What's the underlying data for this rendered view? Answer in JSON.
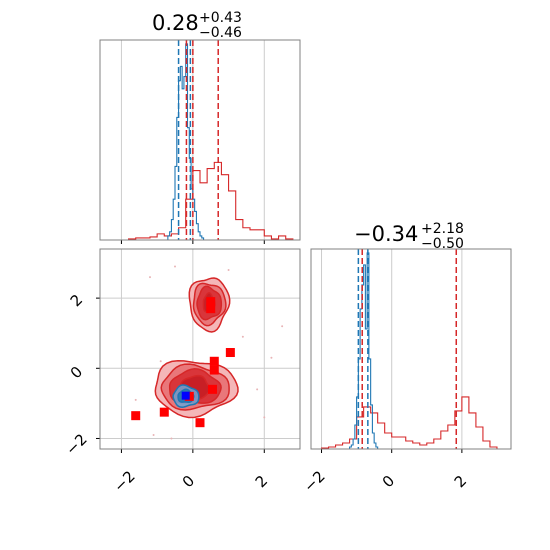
{
  "colors": {
    "red": "#d62728",
    "blue": "#1f77b4",
    "red_fill_light": "#f4b6b8",
    "red_fill_mid": "#e9777a",
    "red_fill_dark": "#d9353a",
    "marker_red": "#ff0000",
    "marker_blue": "#0000ff",
    "grid": "#cccccc",
    "axis": "#808080"
  },
  "chart_data": [
    {
      "type": "histogram",
      "panel": "marginal-param-1",
      "title": {
        "value": "0.28",
        "upper": "+0.43",
        "lower": "−0.46"
      },
      "xlim": [
        -2.6,
        3.0
      ],
      "ylim": [
        0,
        1
      ],
      "grid": true,
      "series": [
        {
          "color": "red",
          "bin_edges": [
            -2.6,
            -2.4,
            -2.2,
            -2.0,
            -1.8,
            -1.6,
            -1.4,
            -1.2,
            -1.0,
            -0.8,
            -0.6,
            -0.4,
            -0.2,
            0.0,
            0.2,
            0.4,
            0.6,
            0.8,
            1.0,
            1.2,
            1.4,
            1.6,
            1.8,
            2.0,
            2.2,
            2.4,
            2.6,
            2.8,
            3.0
          ],
          "counts": [
            0,
            0,
            0,
            0,
            0.005,
            0.01,
            0.01,
            0.015,
            0.03,
            0.02,
            0.03,
            0.06,
            0.2,
            0.34,
            0.28,
            0.35,
            0.38,
            0.32,
            0.24,
            0.1,
            0.06,
            0.05,
            0.05,
            0.02,
            0.005,
            0.02,
            0.005,
            0
          ]
        },
        {
          "color": "blue",
          "bin_edges": [
            -0.7,
            -0.65,
            -0.6,
            -0.55,
            -0.5,
            -0.45,
            -0.4,
            -0.35,
            -0.3,
            -0.25,
            -0.2,
            -0.15,
            -0.1,
            -0.05,
            0.0,
            0.05,
            0.1,
            0.15,
            0.2,
            0.25,
            0.3
          ],
          "counts": [
            0.02,
            0.04,
            0.1,
            0.2,
            0.36,
            0.6,
            0.78,
            0.85,
            0.74,
            0.8,
            0.96,
            0.55,
            0.4,
            0.25,
            0.2,
            0.14,
            0.08,
            0.04,
            0.02,
            0.01
          ]
        }
      ],
      "quantile_lines": [
        {
          "color": "blue",
          "x": -0.4
        },
        {
          "color": "blue",
          "x": -0.07
        },
        {
          "color": "red",
          "x": -0.18
        },
        {
          "color": "red",
          "x": 0.0
        },
        {
          "color": "red",
          "x": 0.71
        }
      ]
    },
    {
      "type": "histogram",
      "panel": "marginal-param-2",
      "title": {
        "value": "−0.34",
        "upper": "+2.18",
        "lower": "−0.50"
      },
      "xlim": [
        -2.3,
        3.4
      ],
      "ylim": [
        0,
        1
      ],
      "grid": true,
      "series": [
        {
          "color": "red",
          "bin_edges": [
            -2.2,
            -2.0,
            -1.8,
            -1.6,
            -1.4,
            -1.2,
            -1.0,
            -0.8,
            -0.6,
            -0.4,
            -0.2,
            0.0,
            0.2,
            0.4,
            0.6,
            0.8,
            1.0,
            1.2,
            1.4,
            1.6,
            1.8,
            2.0,
            2.2,
            2.4,
            2.6,
            2.8,
            3.0
          ],
          "counts": [
            0,
            0.005,
            0.01,
            0.02,
            0.03,
            0.05,
            0.16,
            0.21,
            0.18,
            0.13,
            0.08,
            0.06,
            0.06,
            0.04,
            0.03,
            0.02,
            0.03,
            0.05,
            0.09,
            0.12,
            0.19,
            0.26,
            0.18,
            0.11,
            0.04,
            0.01
          ]
        },
        {
          "color": "blue",
          "bin_edges": [
            -1.2,
            -1.15,
            -1.1,
            -1.05,
            -1.0,
            -0.95,
            -0.9,
            -0.85,
            -0.8,
            -0.75,
            -0.7,
            -0.65,
            -0.6,
            -0.55,
            -0.5,
            -0.45,
            -0.4
          ],
          "counts": [
            0.01,
            0.02,
            0.05,
            0.12,
            0.26,
            0.45,
            0.7,
            0.82,
            0.92,
            0.6,
            0.98,
            0.45,
            0.22,
            0.08,
            0.03,
            0.01
          ]
        }
      ],
      "quantile_lines": [
        {
          "color": "blue",
          "x": -0.95
        },
        {
          "color": "blue",
          "x": -0.68
        },
        {
          "color": "red",
          "x": -0.84
        },
        {
          "color": "red",
          "x": 1.84
        }
      ]
    },
    {
      "type": "contour",
      "panel": "joint-param-1-vs-param-2",
      "xlim": [
        -2.6,
        3.0
      ],
      "ylim": [
        -2.3,
        3.4
      ],
      "grid": true,
      "xticks": [
        "−2",
        "0",
        "2"
      ],
      "yticks": [
        "−2",
        "0",
        "2"
      ],
      "red_modes": [
        {
          "cx": 0.45,
          "cy": 1.85,
          "levels": [
            [
              0.55,
              0.75
            ],
            [
              0.45,
              0.58
            ],
            [
              0.34,
              0.45
            ],
            [
              0.16,
              0.27
            ]
          ]
        },
        {
          "cx": 0.05,
          "cy": -0.55,
          "levels": [
            [
              1.15,
              0.78
            ],
            [
              0.95,
              0.62
            ],
            [
              0.72,
              0.48
            ],
            [
              0.42,
              0.32
            ]
          ]
        }
      ],
      "blue_mode": {
        "cx": -0.2,
        "cy": -0.8,
        "levels": [
          [
            0.36,
            0.3
          ],
          [
            0.22,
            0.18
          ]
        ]
      },
      "red_markers": [
        [
          0.5,
          1.9
        ],
        [
          0.5,
          1.7
        ],
        [
          0.6,
          0.2
        ],
        [
          1.05,
          0.45
        ],
        [
          0.6,
          -0.05
        ],
        [
          0.55,
          -0.6
        ],
        [
          -0.1,
          -0.8
        ],
        [
          -0.8,
          -1.25
        ],
        [
          -1.6,
          -1.35
        ],
        [
          0.2,
          -1.55
        ]
      ],
      "blue_markers": [
        [
          -0.2,
          -0.78
        ]
      ],
      "scatter_points": [
        [
          -1.2,
          2.6
        ],
        [
          1.4,
          0.9
        ],
        [
          -0.9,
          0.2
        ],
        [
          1.8,
          -0.6
        ],
        [
          -1.6,
          -0.9
        ],
        [
          2.2,
          0.3
        ],
        [
          -0.5,
          2.9
        ],
        [
          1.0,
          2.8
        ],
        [
          -1.1,
          -1.9
        ],
        [
          2.0,
          -1.4
        ],
        [
          -0.6,
          -2.0
        ],
        [
          2.5,
          1.2
        ]
      ]
    }
  ],
  "axes": {
    "joint_x_ticks": [
      "−2",
      "0",
      "2"
    ],
    "joint_y_ticks": [
      "−2",
      "0",
      "2"
    ],
    "marginal2_x_ticks": [
      "−2",
      "0",
      "2"
    ]
  }
}
